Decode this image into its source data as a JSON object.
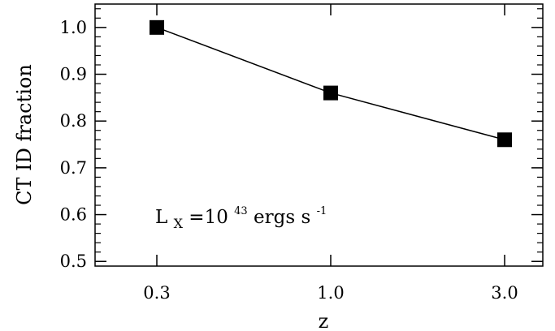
{
  "chart_data": {
    "type": "line",
    "x": [
      "0.3",
      "1.0",
      "3.0"
    ],
    "series": [
      {
        "values": [
          1.0,
          0.86,
          0.76
        ],
        "marker": "square",
        "color": "#000000"
      }
    ],
    "xlabel": "z",
    "ylabel": "CT ID fraction",
    "ylim": [
      0.49,
      1.05
    ],
    "yticks": [
      "0.5",
      "0.6",
      "0.7",
      "0.8",
      "0.9",
      "1.0"
    ],
    "annotation": {
      "main": "L",
      "sub": "X",
      "eq": "=10",
      "exp": "43",
      "units": " ergs s",
      "units_exp": "-1"
    },
    "grid": false
  }
}
